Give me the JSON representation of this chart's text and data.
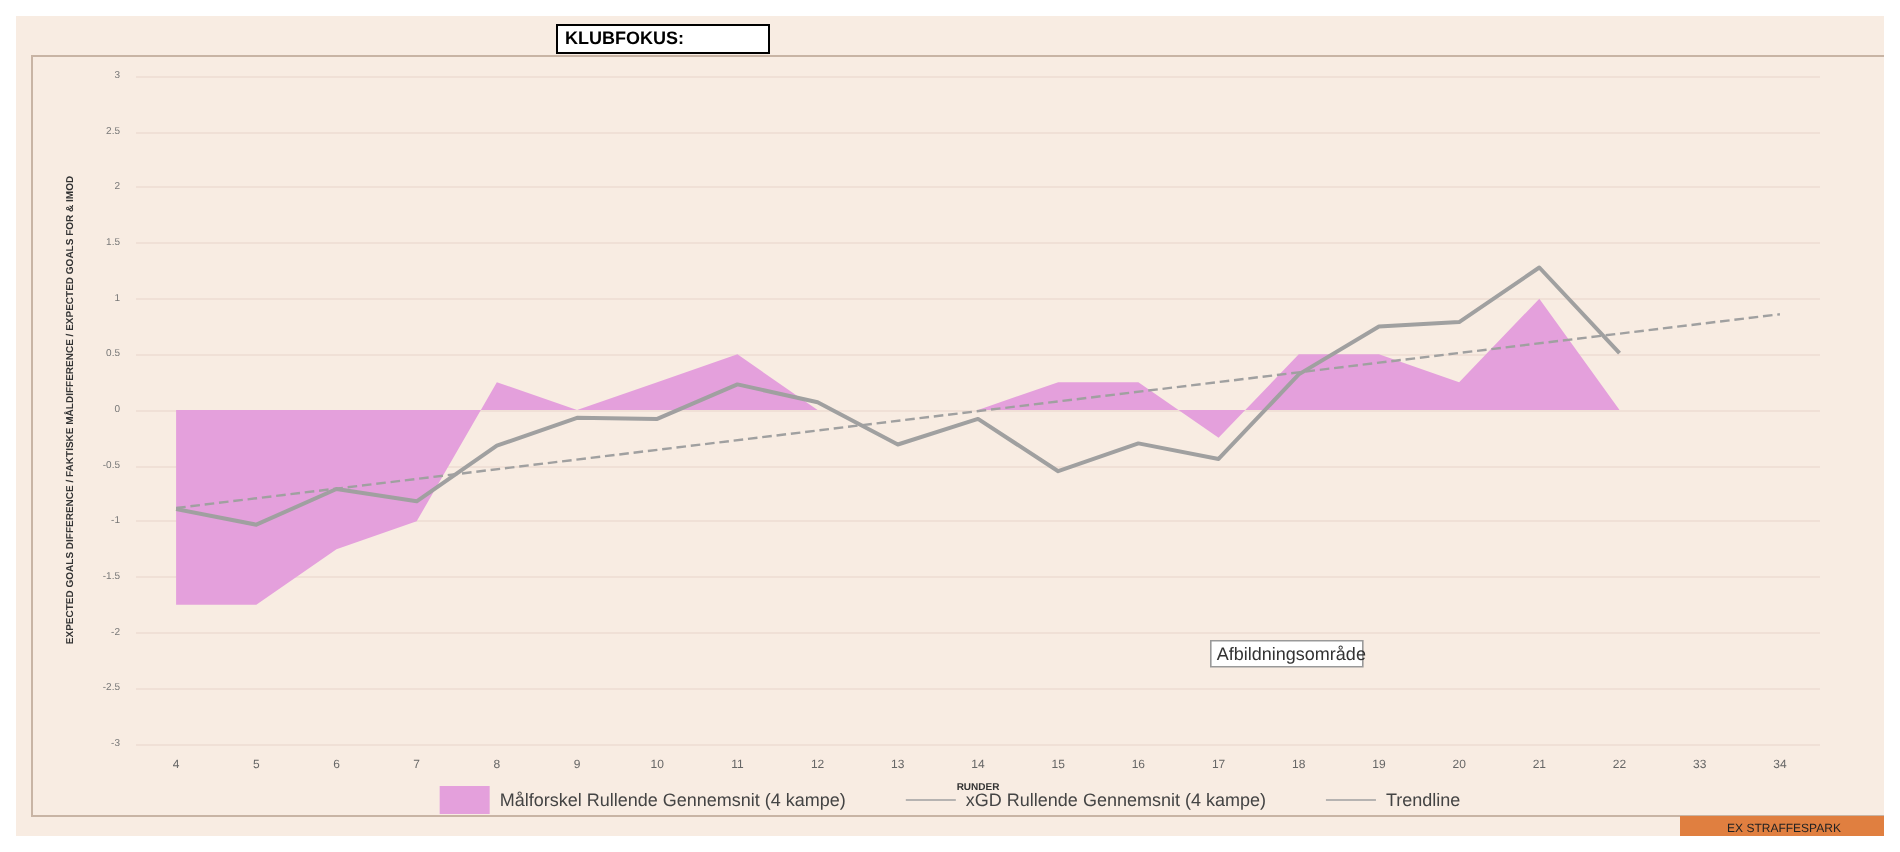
{
  "chart_data": {
    "type": "area",
    "title": "KLUBFOKUS:",
    "xlabel": "RUNDER",
    "ylabel": "EXPECTED GOALS DIFFERENCE / FAKTISKE MÅLDIFFERENCE / EXPECTED GOALS FOR & IMOD",
    "categories": [
      "4",
      "5",
      "6",
      "7",
      "8",
      "9",
      "10",
      "11",
      "12",
      "13",
      "14",
      "15",
      "16",
      "17",
      "18",
      "19",
      "20",
      "21",
      "22",
      "33",
      "34"
    ],
    "series": [
      {
        "name": "Målforskel Rullende Gennemsnit (4 kampe)",
        "color": "#e4a0dc",
        "values": [
          -1.75,
          -1.75,
          -1.25,
          -1,
          0.25,
          0,
          0.25,
          0.5,
          0,
          0,
          0,
          0.25,
          0.25,
          -0.25,
          0.5,
          0.5,
          0.25,
          1,
          0,
          null,
          null
        ]
      },
      {
        "name": "xGD Rullende Gennemsnit (4 kampe)",
        "type": "line",
        "color": "#a0a0a0",
        "line_style": "solid",
        "values": [
          -0.89,
          -1.03,
          -0.71,
          -0.82,
          -0.32,
          -0.07,
          -0.08,
          0.23,
          0.07,
          -0.31,
          -0.08,
          -0.55,
          -0.3,
          -0.44,
          0.32,
          0.75,
          0.79,
          1.28,
          0.51,
          null,
          null
        ]
      },
      {
        "name": "Trendline",
        "type": "line",
        "color": "#a0a0a0",
        "line_style": "dashed",
        "x": [
          "4",
          "34"
        ],
        "values": [
          -0.88,
          0.86
        ]
      }
    ],
    "ylim": [
      -3,
      3
    ],
    "yticks": [
      -3,
      -2.5,
      -2,
      -1.5,
      -1,
      -0.5,
      0,
      0.5,
      1,
      1.5,
      2,
      2.5,
      3
    ],
    "grid": "y",
    "legend": "bottom",
    "annotations": [
      "Afbildningsområde",
      "EX STRAFFESPARK"
    ]
  }
}
